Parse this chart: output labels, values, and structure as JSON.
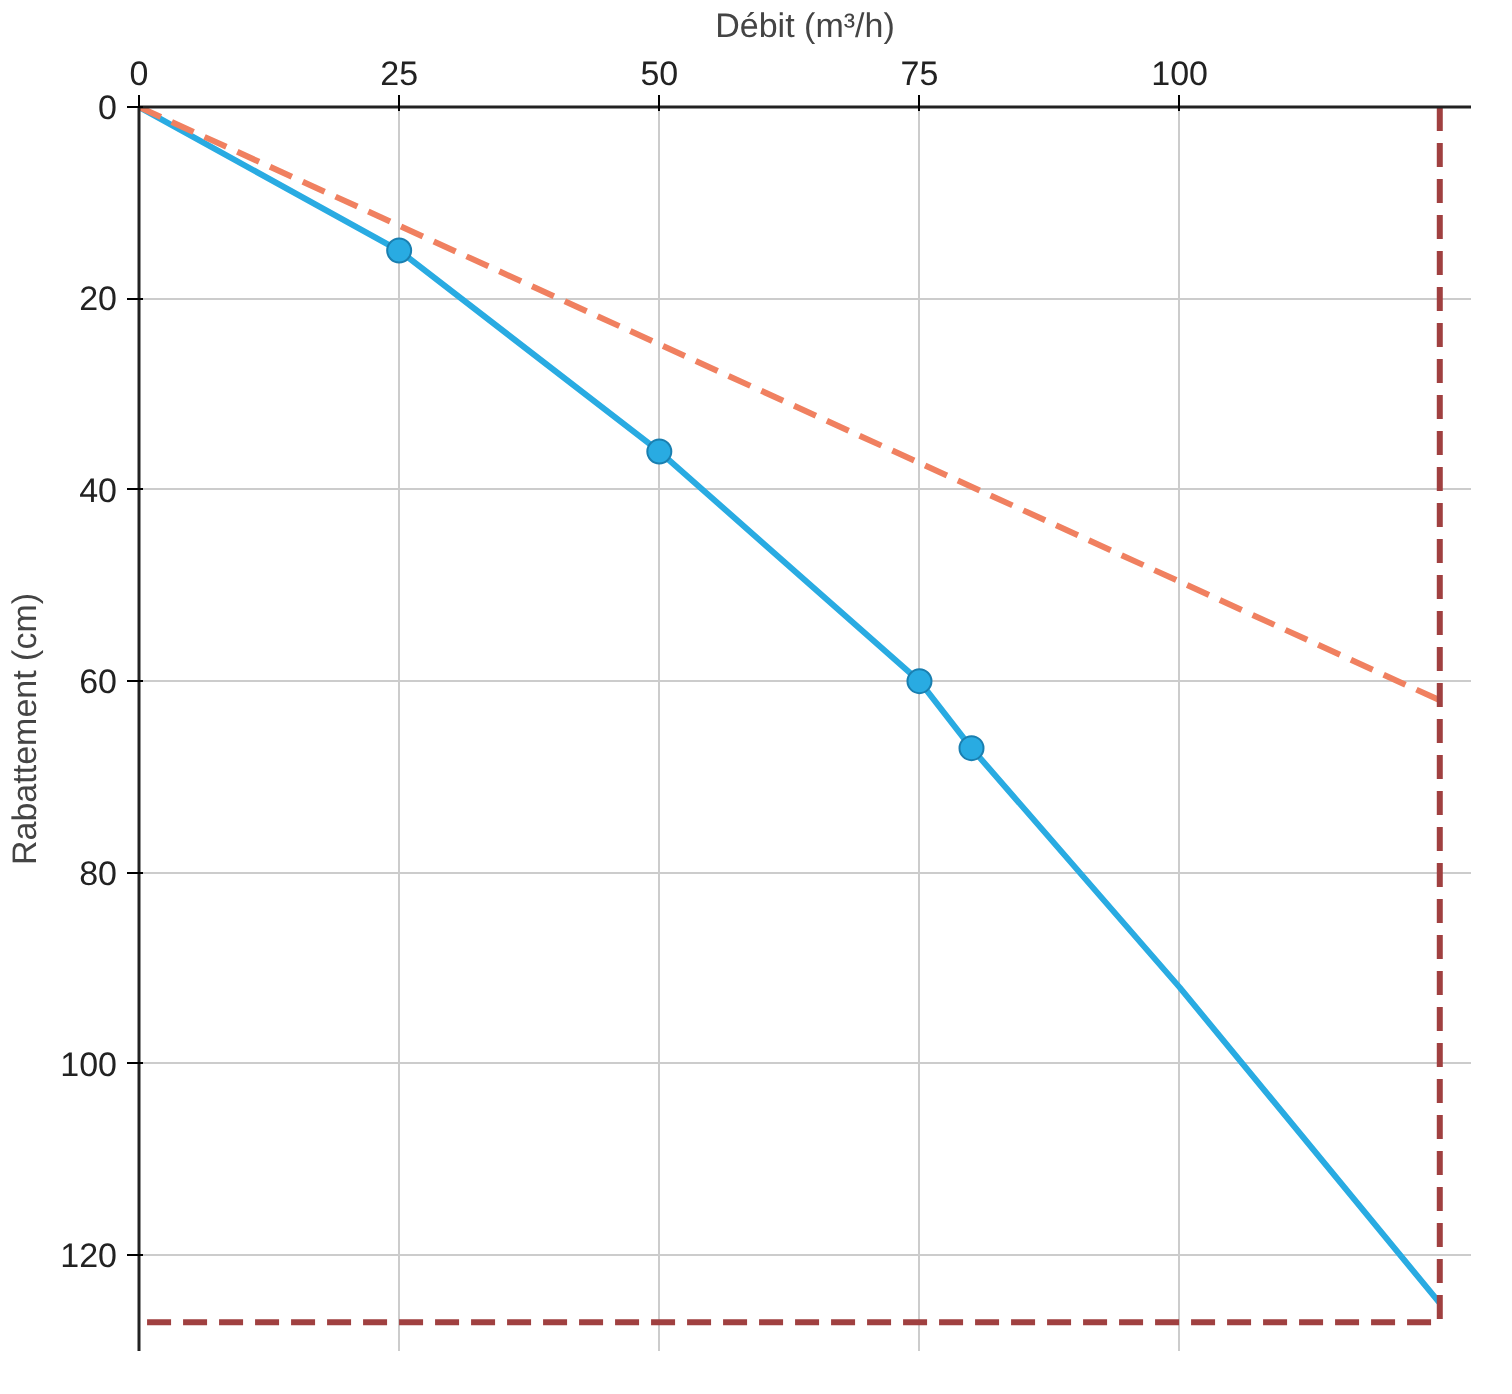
{
  "chart_data": {
    "type": "line",
    "xlabel": "Débit (m³/h)",
    "ylabel": "Rabattement (cm)",
    "xlim": [
      0,
      128
    ],
    "ylim": [
      130,
      0
    ],
    "xticks": [
      0,
      25,
      50,
      75,
      100
    ],
    "yticks": [
      0,
      20,
      40,
      60,
      80,
      100,
      120
    ],
    "grid": true,
    "series": [
      {
        "color": "#29abe2",
        "line_style": "solid",
        "x": [
          0,
          25,
          50,
          75,
          80,
          100,
          125
        ],
        "values": [
          0,
          15,
          36,
          60,
          67,
          92,
          125
        ]
      },
      {
        "type": "scatter",
        "color": "#29abe2",
        "marker": "circle",
        "x": [
          25,
          50,
          75,
          80
        ],
        "values": [
          15,
          36,
          60,
          67
        ]
      },
      {
        "color": "#f08060",
        "line_style": "dashed",
        "x": [
          0,
          125
        ],
        "values": [
          0,
          62
        ]
      },
      {
        "color": "#a04040",
        "line_style": "dashed",
        "x": [
          125,
          125,
          0
        ],
        "values": [
          0,
          127,
          127
        ]
      }
    ]
  }
}
